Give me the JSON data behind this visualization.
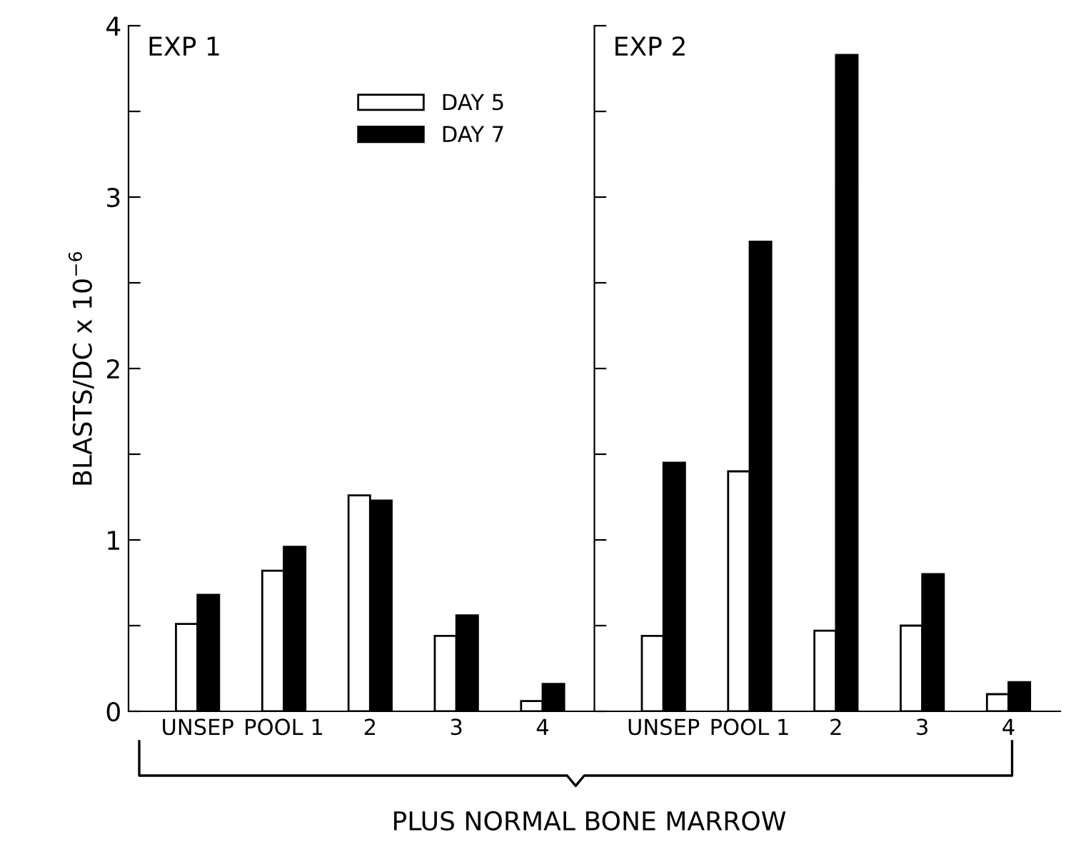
{
  "chart_data": [
    {
      "type": "bar",
      "title": "EXP 1",
      "ylabel": "BLASTS/DC x 10$^{−6}$",
      "categories": [
        "UNSEP",
        "POOL 1",
        "2",
        "3",
        "4"
      ],
      "series": [
        {
          "name": "DAY 5",
          "color": "#ffffff",
          "values": [
            0.51,
            0.82,
            1.26,
            0.44,
            0.06
          ]
        },
        {
          "name": "DAY 7",
          "color": "#000000",
          "values": [
            0.68,
            0.96,
            1.23,
            0.56,
            0.16
          ]
        }
      ],
      "ylim": [
        0,
        4
      ],
      "yticks": [
        0,
        {
          "value": 0.5,
          "label": null
        },
        1,
        {
          "value": 1.5,
          "label": null
        },
        2,
        {
          "value": 2.5,
          "label": null
        },
        3,
        {
          "value": 3.5,
          "label": null
        },
        4
      ],
      "legend": "top right",
      "grid": false,
      "annotations": [
        "PLUS NORMAL BONE MARROW"
      ]
    },
    {
      "type": "bar",
      "title": "EXP 2",
      "categories": [
        "UNSEP",
        "POOL 1",
        "2",
        "3",
        "4"
      ],
      "series": [
        {
          "color": "#ffffff",
          "values": [
            0.44,
            1.4,
            0.47,
            0.5,
            0.1
          ]
        },
        {
          "color": "#000000",
          "values": [
            1.45,
            2.74,
            3.83,
            0.8,
            0.17
          ]
        }
      ],
      "ylim": [
        0,
        4
      ],
      "yticks": [
        0,
        {
          "value": 0.5,
          "label": null
        },
        1,
        {
          "value": 1.5,
          "label": null
        },
        2,
        {
          "value": 2.5,
          "label": null
        },
        3,
        {
          "value": 3.5,
          "label": null
        },
        4
      ],
      "tick_labels": "x",
      "grid": false
    }
  ]
}
